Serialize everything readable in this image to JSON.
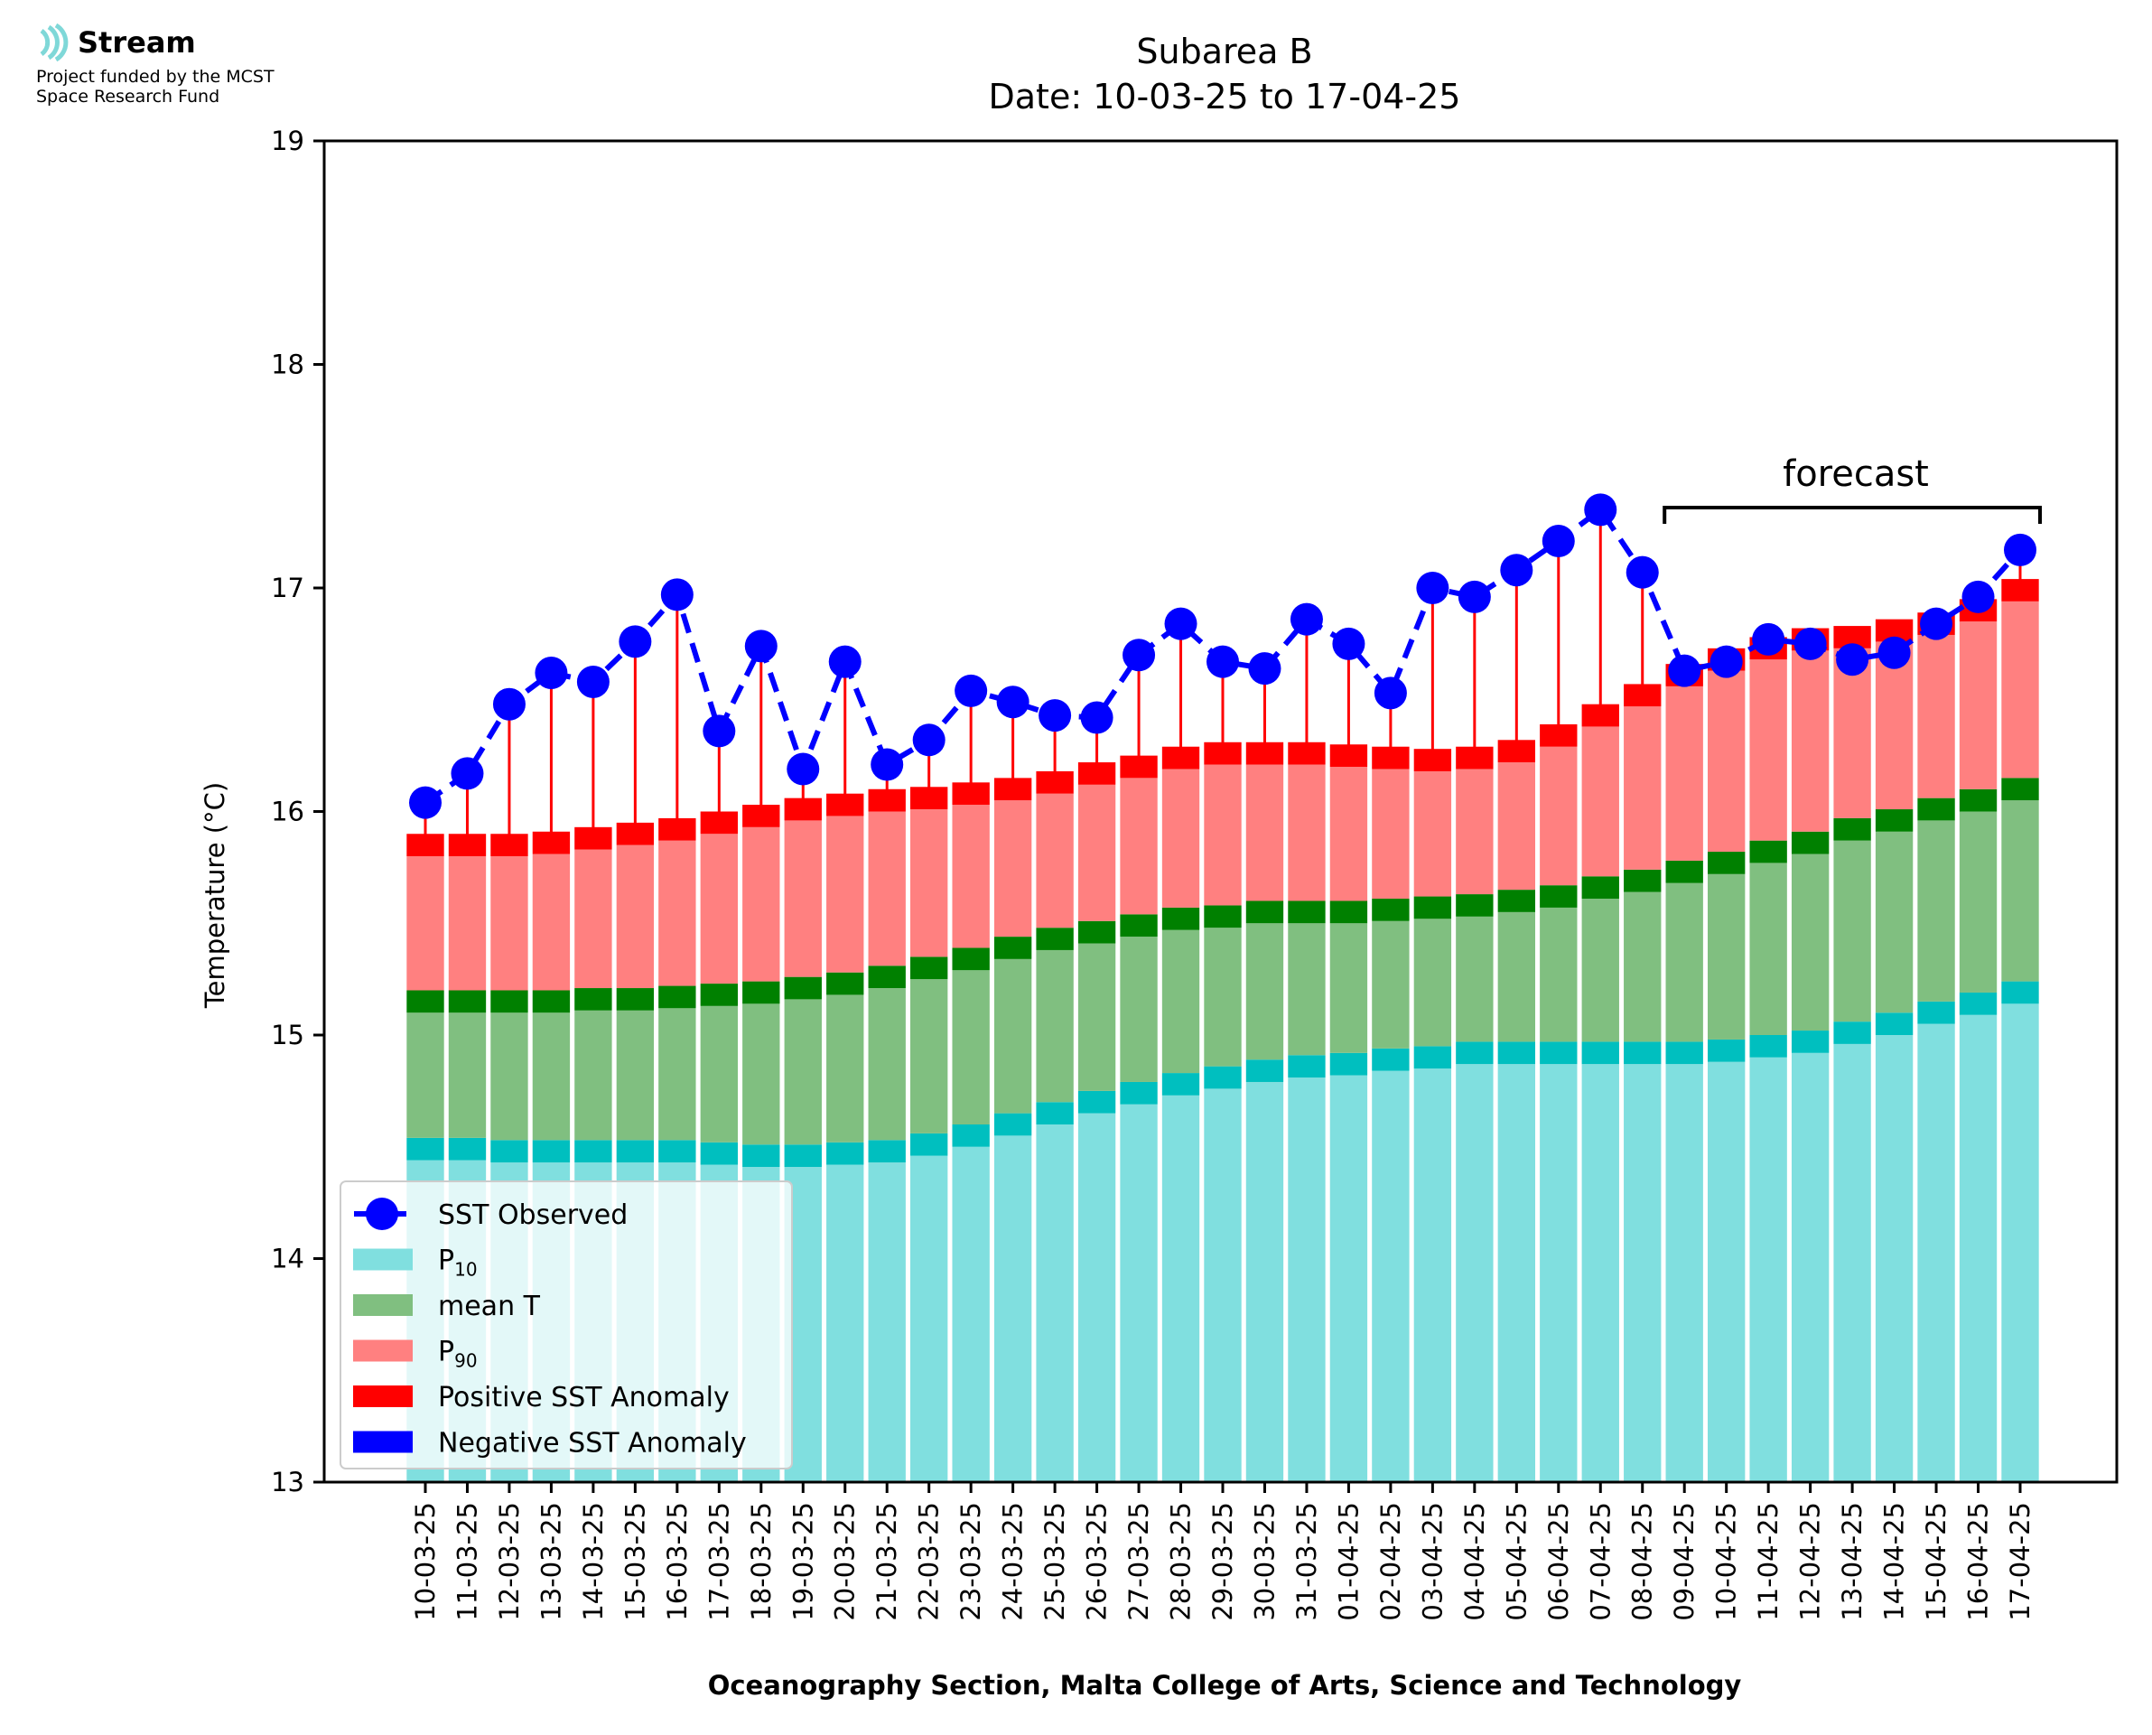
{
  "header": {
    "brand": "Stream",
    "funding_line1": "Project funded by the MCST",
    "funding_line2": "Space Research Fund"
  },
  "annotation": {
    "forecast_label": "forecast"
  },
  "colors": {
    "p10": "#80dfdf",
    "p10_band": "#00bfbf",
    "mean": "#80bf80",
    "mean_band": "#008000",
    "p90": "#ff8080",
    "p90_band": "#ff0000",
    "positive_anomaly": "#ff0000",
    "negative_anomaly": "#0000ff",
    "observed": "#0000ff"
  },
  "chart_data": {
    "type": "bar",
    "title": "Subarea B",
    "subtitle": "Date: 10-03-25 to 17-04-25",
    "xlabel": "Oceanography Section, Malta College of Arts, Science and Technology",
    "ylabel": "Temperature (°C)",
    "ylim": [
      13,
      19
    ],
    "yticks": [
      13,
      14,
      15,
      16,
      17,
      18,
      19
    ],
    "grid": false,
    "legend_position": "lower-left",
    "categories": [
      "10-03-25",
      "11-03-25",
      "12-03-25",
      "13-03-25",
      "14-03-25",
      "15-03-25",
      "16-03-25",
      "17-03-25",
      "18-03-25",
      "19-03-25",
      "20-03-25",
      "21-03-25",
      "22-03-25",
      "23-03-25",
      "24-03-25",
      "25-03-25",
      "26-03-25",
      "27-03-25",
      "28-03-25",
      "29-03-25",
      "30-03-25",
      "31-03-25",
      "01-04-25",
      "02-04-25",
      "03-04-25",
      "04-04-25",
      "05-04-25",
      "06-04-25",
      "07-04-25",
      "08-04-25",
      "09-04-25",
      "10-04-25",
      "11-04-25",
      "12-04-25",
      "13-04-25",
      "14-04-25",
      "15-04-25",
      "16-04-25",
      "17-04-25"
    ],
    "forecast_start_index": 30,
    "forecast_end_index": 38,
    "series": [
      {
        "name": "P10",
        "values": [
          14.49,
          14.49,
          14.48,
          14.48,
          14.48,
          14.48,
          14.48,
          14.47,
          14.46,
          14.46,
          14.47,
          14.48,
          14.51,
          14.55,
          14.6,
          14.65,
          14.7,
          14.74,
          14.78,
          14.81,
          14.84,
          14.86,
          14.87,
          14.89,
          14.9,
          14.92,
          14.92,
          14.92,
          14.92,
          14.92,
          14.92,
          14.93,
          14.95,
          14.97,
          15.01,
          15.05,
          15.1,
          15.14,
          15.19
        ]
      },
      {
        "name": "mean T",
        "values": [
          15.15,
          15.15,
          15.15,
          15.15,
          15.16,
          15.16,
          15.17,
          15.18,
          15.19,
          15.21,
          15.23,
          15.26,
          15.3,
          15.34,
          15.39,
          15.43,
          15.46,
          15.49,
          15.52,
          15.53,
          15.55,
          15.55,
          15.55,
          15.56,
          15.57,
          15.58,
          15.6,
          15.62,
          15.66,
          15.69,
          15.73,
          15.77,
          15.82,
          15.86,
          15.92,
          15.96,
          16.01,
          16.05,
          16.1
        ]
      },
      {
        "name": "P90",
        "values": [
          15.85,
          15.85,
          15.85,
          15.86,
          15.88,
          15.9,
          15.92,
          15.95,
          15.98,
          16.01,
          16.03,
          16.05,
          16.06,
          16.08,
          16.1,
          16.13,
          16.17,
          16.2,
          16.24,
          16.26,
          16.26,
          16.26,
          16.25,
          16.24,
          16.23,
          16.24,
          16.27,
          16.34,
          16.43,
          16.52,
          16.61,
          16.68,
          16.73,
          16.77,
          16.78,
          16.81,
          16.84,
          16.9,
          16.99
        ]
      },
      {
        "name": "SST Observed",
        "values": [
          16.04,
          16.17,
          16.48,
          16.62,
          16.58,
          16.76,
          16.97,
          16.36,
          16.74,
          16.19,
          16.67,
          16.21,
          16.32,
          16.54,
          16.49,
          16.43,
          16.42,
          16.7,
          16.84,
          16.67,
          16.64,
          16.86,
          16.75,
          16.53,
          17.0,
          16.96,
          17.08,
          17.21,
          17.35,
          17.07,
          16.63,
          16.67,
          16.77,
          16.75,
          16.68,
          16.71,
          16.84,
          16.96,
          17.17
        ]
      }
    ],
    "legend": [
      "SST Observed",
      "P",
      "mean T",
      "P",
      "Positive SST Anomaly",
      "Negative SST Anomaly"
    ],
    "legend_subscripts": [
      "",
      "10",
      "",
      "90",
      "",
      ""
    ]
  }
}
